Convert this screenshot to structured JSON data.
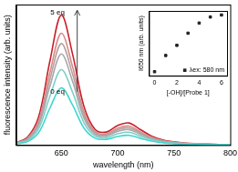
{
  "chart_data": [
    {
      "type": "line",
      "x_label": "wavelength (nm)",
      "y_label": "fluorescence intensity (arb. units)",
      "x": [
        610,
        620,
        630,
        640,
        650,
        660,
        670,
        680,
        690,
        700,
        710,
        720,
        730,
        740,
        750,
        760,
        770,
        780,
        790,
        800
      ],
      "series": [
        {
          "color": "#3fd6cf",
          "values": [
            44,
            132,
            484,
            1430,
            2200,
            1540,
            660,
            264,
            220,
            330,
            374,
            264,
            154,
            88,
            55,
            33,
            22,
            15,
            11,
            9
          ]
        },
        {
          "color": "#7fcfc8",
          "values": [
            58,
            174,
            638,
            1885,
            2900,
            2030,
            870,
            348,
            290,
            435,
            493,
            348,
            203,
            116,
            73,
            44,
            29,
            20,
            15,
            12
          ]
        },
        {
          "color": "#a8a8a8",
          "values": [
            70,
            210,
            770,
            2275,
            3500,
            2450,
            1050,
            420,
            350,
            525,
            595,
            420,
            245,
            140,
            88,
            53,
            35,
            25,
            18,
            14
          ]
        },
        {
          "color": "#b8a0a0",
          "values": [
            78,
            234,
            858,
            2535,
            3900,
            2730,
            1170,
            468,
            390,
            585,
            663,
            468,
            273,
            156,
            98,
            59,
            39,
            27,
            20,
            16
          ]
        },
        {
          "color": "#d88a8a",
          "values": [
            86,
            258,
            946,
            2795,
            4300,
            3010,
            1290,
            516,
            430,
            645,
            731,
            516,
            301,
            172,
            108,
            65,
            43,
            30,
            22,
            17
          ]
        },
        {
          "color": "#c8202a",
          "values": [
            100,
            300,
            1100,
            3250,
            5000,
            3500,
            1500,
            600,
            500,
            750,
            850,
            600,
            350,
            200,
            125,
            75,
            50,
            35,
            25,
            20
          ]
        }
      ],
      "xlim": [
        610,
        800
      ],
      "xticks": [
        650,
        700,
        750,
        800
      ],
      "ylim": [
        0,
        5400
      ],
      "tick_labels": "x",
      "grid": false,
      "annotations": [
        "5 eq",
        "0 eq"
      ]
    },
    {
      "type": "scatter",
      "x_label": "[-OH]/[Probe 1]",
      "y_label": "I650 nm (arb. units)",
      "x": [
        0,
        1,
        2,
        3,
        4,
        5,
        6
      ],
      "series": [
        {
          "name": "λex: 580 nm",
          "color": "#222222",
          "marker": "square",
          "values": [
            2200,
            3000,
            3500,
            4100,
            4600,
            4900,
            5000
          ]
        }
      ],
      "xlim": [
        -0.5,
        6.5
      ],
      "xticks": [
        0,
        2,
        4,
        6
      ],
      "ylim": [
        2000,
        5200
      ],
      "tick_labels": "x",
      "grid": false,
      "legend": "lower right"
    }
  ]
}
